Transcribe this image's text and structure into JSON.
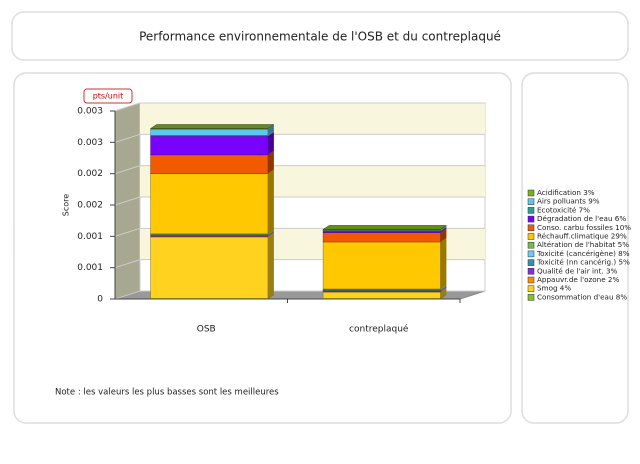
{
  "chart_data": {
    "type": "bar3d-stacked",
    "title": "Performance environnementale de l'OSB et du contreplaqué",
    "unit_label": "pts/unit",
    "y_label": "Score",
    "note": "Note : les valeurs les plus basses sont les meilleures",
    "categories": [
      "OSB",
      "contreplaqué"
    ],
    "ylim": [
      0,
      0.003
    ],
    "yticks": [
      0,
      {
        "value": 0.0005,
        "label": "0.001"
      },
      {
        "value": 0.001,
        "label": "0.001"
      },
      {
        "value": 0.0015,
        "label": "0.002"
      },
      {
        "value": 0.002,
        "label": "0.002"
      },
      {
        "value": 0.0025,
        "label": "0.003"
      },
      {
        "value": 0.003,
        "label": "0.003"
      }
    ],
    "grid": true,
    "series": [
      {
        "name": "Acidification 3%",
        "color": "#7ab317",
        "values": [
          1e-05,
          1e-05
        ]
      },
      {
        "name": "Airs polluants 9%",
        "color": "#5bc8f0",
        "values": [
          0.0001,
          1e-05
        ]
      },
      {
        "name": "Ecotoxicité 7%",
        "color": "#2e9f8e",
        "values": [
          1e-05,
          1e-05
        ]
      },
      {
        "name": "Dégradation de l'eau 6%",
        "color": "#7a00ff",
        "values": [
          0.0003,
          2e-05
        ]
      },
      {
        "name": "Conso. carbu fossiles 10%",
        "color": "#f25a00",
        "values": [
          0.0003,
          0.00015
        ]
      },
      {
        "name": "Réchauff.climatique 29%",
        "color": "#ffc800",
        "values": [
          0.00096,
          0.00075
        ]
      },
      {
        "name": "Altération de l'habitat 5%",
        "color": "#6ec040",
        "values": [
          1e-05,
          1e-05
        ]
      },
      {
        "name": "Toxicité (cancérigène) 8%",
        "color": "#66ccff",
        "values": [
          1e-05,
          1e-05
        ]
      },
      {
        "name": "Toxicité (nn cancérig.) 5%",
        "color": "#3a8fa8",
        "values": [
          1e-05,
          1e-05
        ]
      },
      {
        "name": "Qualité de l'air int. 3%",
        "color": "#8a2be2",
        "values": [
          1e-05,
          1e-05
        ]
      },
      {
        "name": "Appauvr.de l'ozone 2%",
        "color": "#ff8c00",
        "values": [
          1e-05,
          1e-05
        ]
      },
      {
        "name": "Smog 4%",
        "color": "#ffd21f",
        "values": [
          0.00098,
          0.0001
        ]
      },
      {
        "name": "Consommation d'eau 8%",
        "color": "#88c020",
        "values": [
          1e-05,
          1e-05
        ]
      }
    ]
  }
}
